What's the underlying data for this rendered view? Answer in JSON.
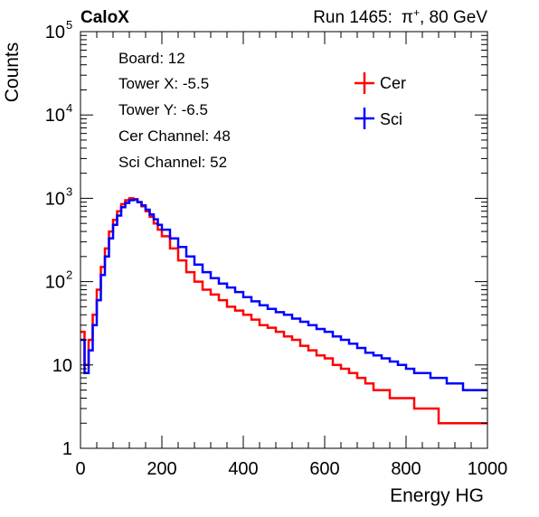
{
  "header": {
    "experiment": "CaloX",
    "run_info": "Run 1465:",
    "particle": "π",
    "particle_charge": "+",
    "energy_text": ", 80 GeV"
  },
  "info_box": {
    "lines": [
      "Board: 12",
      "Tower X: -5.5",
      "Tower Y: -6.5",
      "Cer Channel: 48",
      "Sci Channel: 52"
    ]
  },
  "chart_data": {
    "type": "line",
    "style": "step histogram",
    "xlabel": "Energy HG",
    "ylabel": "Counts",
    "xlim": [
      0,
      1000
    ],
    "ylim": [
      1,
      100000
    ],
    "yscale": "log",
    "legend_position": "top-right",
    "x_ticks": [
      0,
      200,
      400,
      600,
      800,
      1000
    ],
    "y_ticks": [
      {
        "value": 1,
        "base": "1",
        "exp": ""
      },
      {
        "value": 10,
        "base": "10",
        "exp": ""
      },
      {
        "value": 100,
        "base": "10",
        "exp": "2"
      },
      {
        "value": 1000,
        "base": "10",
        "exp": "3"
      },
      {
        "value": 10000,
        "base": "10",
        "exp": "4"
      },
      {
        "value": 100000,
        "base": "10",
        "exp": "5"
      }
    ],
    "series": [
      {
        "name": "Cer",
        "color": "#ff0000",
        "x": [
          0,
          10,
          20,
          30,
          40,
          50,
          60,
          70,
          80,
          90,
          100,
          110,
          120,
          130,
          140,
          150,
          160,
          170,
          180,
          190,
          200,
          220,
          240,
          260,
          280,
          300,
          320,
          340,
          360,
          380,
          400,
          420,
          440,
          460,
          480,
          500,
          520,
          540,
          560,
          580,
          600,
          620,
          640,
          660,
          680,
          700,
          720,
          740,
          760,
          780,
          800,
          820,
          840,
          860,
          880,
          900,
          920,
          940,
          960,
          980,
          1000
        ],
        "y": [
          25,
          10,
          20,
          40,
          80,
          150,
          250,
          400,
          550,
          700,
          850,
          950,
          1000,
          980,
          900,
          800,
          700,
          600,
          500,
          420,
          350,
          250,
          180,
          130,
          100,
          80,
          70,
          60,
          50,
          45,
          40,
          35,
          30,
          28,
          25,
          22,
          20,
          17,
          15,
          13,
          12,
          10,
          9,
          8,
          7,
          6,
          5,
          5,
          4,
          4,
          4,
          3,
          3,
          3,
          2,
          2,
          2,
          2,
          2,
          2,
          2
        ]
      },
      {
        "name": "Sci",
        "color": "#0000ff",
        "x": [
          0,
          10,
          20,
          30,
          40,
          50,
          60,
          70,
          80,
          90,
          100,
          110,
          120,
          130,
          140,
          150,
          160,
          170,
          180,
          190,
          200,
          220,
          240,
          260,
          280,
          300,
          320,
          340,
          360,
          380,
          400,
          420,
          440,
          460,
          480,
          500,
          520,
          540,
          560,
          580,
          600,
          620,
          640,
          660,
          680,
          700,
          720,
          740,
          760,
          780,
          800,
          820,
          840,
          860,
          880,
          900,
          920,
          940,
          960,
          980,
          1000
        ],
        "y": [
          20,
          8,
          15,
          30,
          60,
          120,
          200,
          330,
          480,
          620,
          780,
          880,
          950,
          960,
          900,
          820,
          730,
          640,
          560,
          480,
          420,
          330,
          260,
          200,
          160,
          130,
          110,
          95,
          85,
          75,
          65,
          58,
          52,
          47,
          43,
          40,
          36,
          33,
          30,
          27,
          25,
          22,
          20,
          18,
          16,
          14,
          13,
          12,
          11,
          10,
          9,
          8,
          8,
          7,
          7,
          6,
          6,
          5,
          5,
          5,
          5
        ]
      }
    ]
  }
}
